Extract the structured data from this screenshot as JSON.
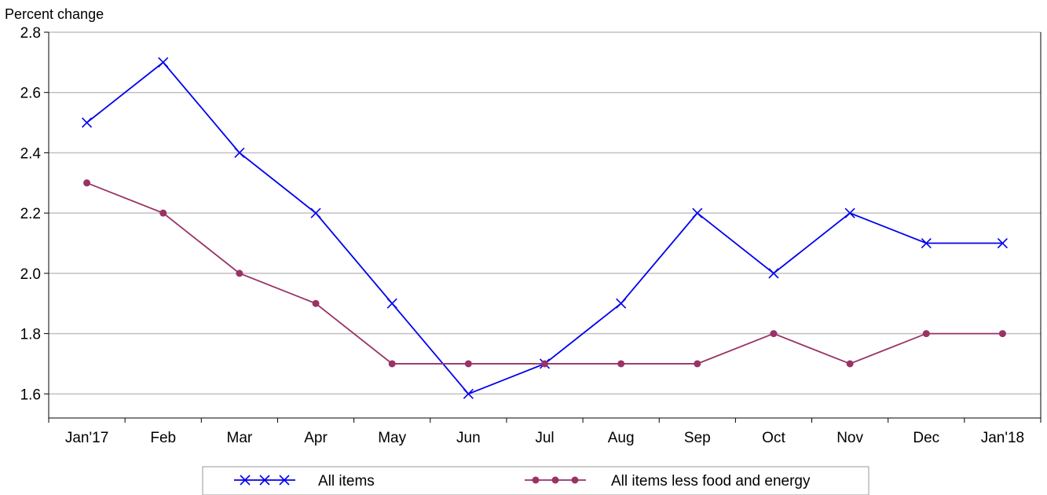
{
  "chart_data": {
    "type": "line",
    "ylabel": "Percent change",
    "categories": [
      "Jan'17",
      "Feb",
      "Mar",
      "Apr",
      "May",
      "Jun",
      "Jul",
      "Aug",
      "Sep",
      "Oct",
      "Nov",
      "Dec",
      "Jan'18"
    ],
    "ylim": [
      1.52,
      2.8
    ],
    "yticks": [
      "1.6",
      "1.8",
      "2.0",
      "2.2",
      "2.4",
      "2.6",
      "2.8"
    ],
    "grid": true,
    "legend_position": "bottom",
    "series": [
      {
        "name": "All items",
        "color": "#0000ee",
        "marker": "x",
        "values": [
          2.5,
          2.7,
          2.4,
          2.2,
          1.9,
          1.6,
          1.7,
          1.9,
          2.2,
          2.0,
          2.2,
          2.1,
          2.1
        ]
      },
      {
        "name": "All items less food and energy",
        "color": "#993366",
        "marker": "dot",
        "values": [
          2.3,
          2.2,
          2.0,
          1.9,
          1.7,
          1.7,
          1.7,
          1.7,
          1.7,
          1.8,
          1.7,
          1.8,
          1.8
        ]
      }
    ]
  }
}
